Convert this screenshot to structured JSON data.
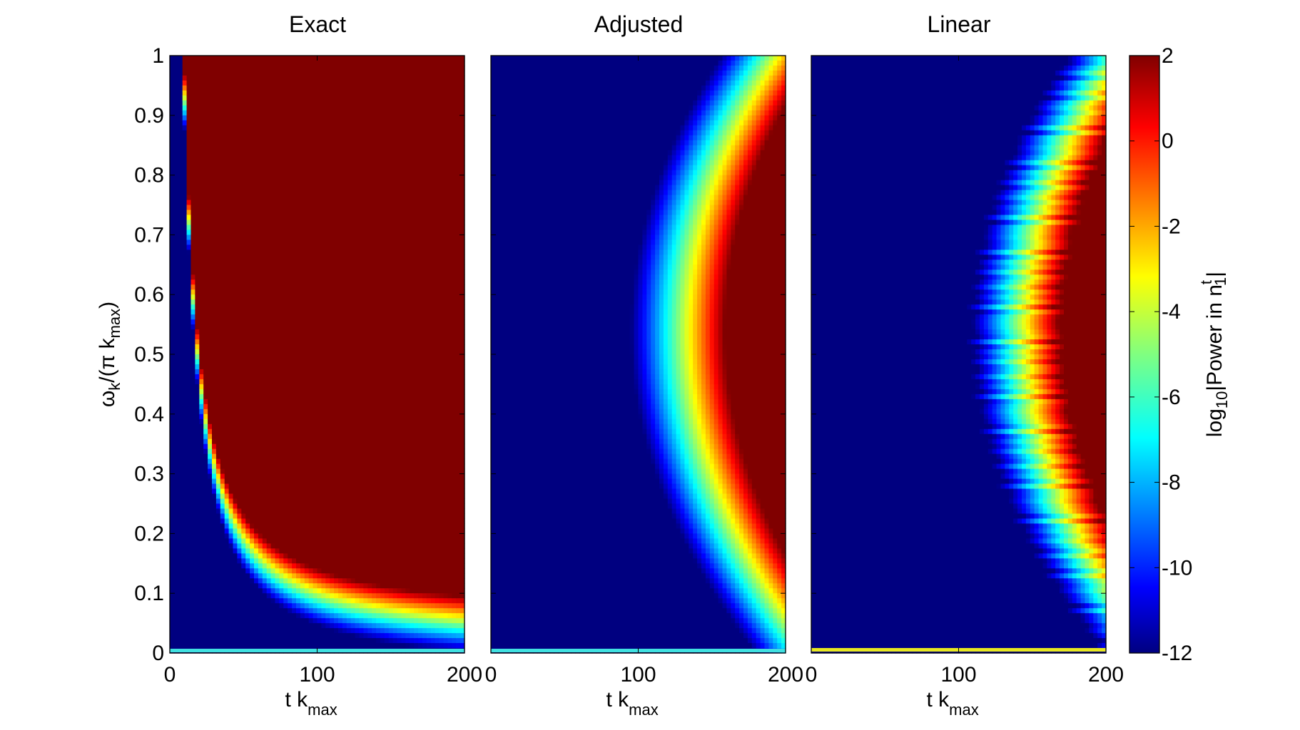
{
  "chart_data": {
    "type": "heatmap",
    "panels": [
      {
        "title": "Exact",
        "model": "exact",
        "bottom_row_color": "#40e0e0"
      },
      {
        "title": "Adjusted",
        "model": "adjusted",
        "bottom_row_color": "#40e0e0"
      },
      {
        "title": "Linear",
        "model": "linear",
        "bottom_row_color": "#e8e820"
      }
    ],
    "x_axis": {
      "label": "t k",
      "label_sub": "max",
      "ticks": [
        "0",
        "100",
        "200"
      ],
      "range": [
        0,
        200
      ]
    },
    "y_axis": {
      "label": "ω",
      "label_sub1": "k",
      "label_mid": "/(π k",
      "label_sub2": "max",
      "label_end": ")",
      "ticks": [
        "0",
        "0.1",
        "0.2",
        "0.3",
        "0.4",
        "0.5",
        "0.6",
        "0.7",
        "0.8",
        "0.9",
        "1"
      ],
      "range": [
        0,
        1
      ]
    },
    "colorbar": {
      "label": "log",
      "label_sub": "10",
      "label_mid": "|Power in n",
      "label_sup": "t",
      "label_sub2": "1",
      "label_end": "|",
      "ticks": [
        "-12",
        "-10",
        "-8",
        "-6",
        "-4",
        "-2",
        "0",
        "2"
      ],
      "range": [
        -12,
        2
      ],
      "colormap": "jet"
    }
  }
}
